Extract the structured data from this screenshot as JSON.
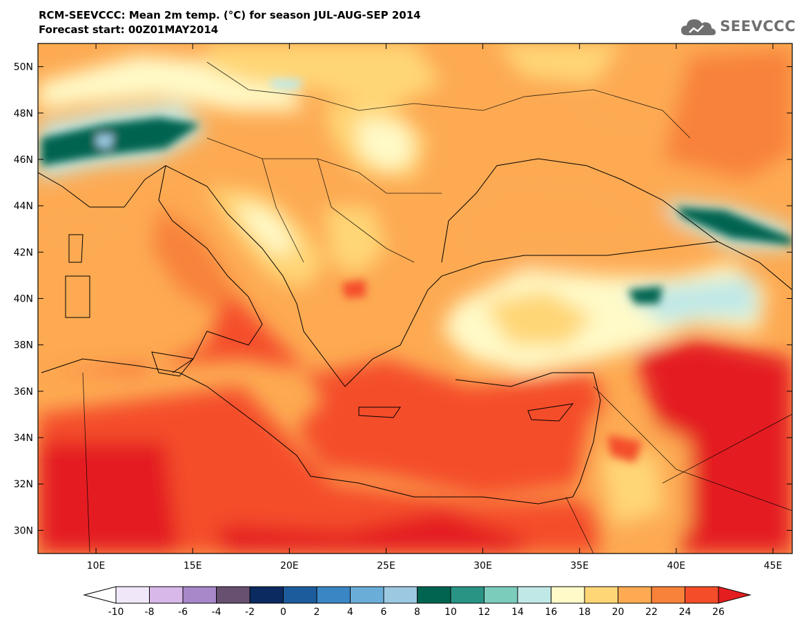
{
  "title": {
    "line1": "RCM-SEEVCCC: Mean 2m temp. (°C) for season JUL-AUG-SEP 2014",
    "line2": "Forecast start: 00Z01MAY2014"
  },
  "logo": {
    "text": "SEEVCCC",
    "icon": "cloud-icon"
  },
  "map": {
    "lon_ticks": [
      "10E",
      "15E",
      "20E",
      "25E",
      "30E",
      "35E",
      "40E",
      "45E"
    ],
    "lat_ticks": [
      "50N",
      "48N",
      "46N",
      "44N",
      "42N",
      "40N",
      "38N",
      "36N",
      "34N",
      "32N",
      "30N"
    ],
    "lon_range": [
      7,
      46
    ],
    "lat_range": [
      29,
      51
    ]
  },
  "colorbar": {
    "labels": [
      "-10",
      "-8",
      "-6",
      "-4",
      "-2",
      "0",
      "2",
      "4",
      "6",
      "8",
      "10",
      "12",
      "14",
      "16",
      "18",
      "20",
      "22",
      "24",
      "26"
    ],
    "colors": [
      "#f0e8f8",
      "#d8b8e8",
      "#a888c8",
      "#685070",
      "#0a2a60",
      "#1c5c9c",
      "#3a86c4",
      "#6aaed8",
      "#9cc8e2",
      "#006450",
      "#2a9484",
      "#7cccbc",
      "#c0e8e6",
      "#fffac8",
      "#ffd676",
      "#fdaa52",
      "#f8823a",
      "#f44d2a"
    ],
    "under_color": "#ffffff",
    "over_color": "#e41e20"
  }
}
